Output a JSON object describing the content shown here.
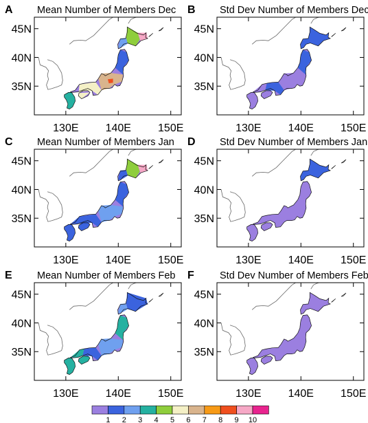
{
  "figure": {
    "colorbar": {
      "ticks": [
        "1",
        "2",
        "3",
        "4",
        "5",
        "6",
        "7",
        "8",
        "9",
        "10"
      ],
      "colors": [
        "#9b7fe0",
        "#3b63de",
        "#6fa0ef",
        "#25b1a1",
        "#8fce3c",
        "#f4f0c6",
        "#d9b48d",
        "#f79a16",
        "#f04f1e",
        "#f6a8c6",
        "#e8238e"
      ]
    }
  },
  "chart_data": [
    {
      "type": "heatmap",
      "panel": "A",
      "title": "Mean Number of Members Dec",
      "xticks": [
        "130E",
        "140E",
        "150E"
      ],
      "yticks": [
        "35N",
        "40N",
        "45N"
      ],
      "xlim": [
        124,
        152
      ],
      "ylim": [
        30,
        47
      ],
      "palette": "colorbar",
      "regions": [
        {
          "name": "hokkaido-west",
          "value": 3
        },
        {
          "name": "hokkaido-central",
          "value": 5
        },
        {
          "name": "hokkaido-east",
          "value": 10
        },
        {
          "name": "tohoku",
          "value": 2
        },
        {
          "name": "kanto-chubu",
          "value": 7
        },
        {
          "name": "kii",
          "value": 9
        },
        {
          "name": "chugoku-shikoku",
          "value": 6
        },
        {
          "name": "kyushu",
          "value": 4
        }
      ]
    },
    {
      "type": "heatmap",
      "panel": "B",
      "title": "Std Dev Number of Members Dec",
      "xticks": [
        "130E",
        "140E",
        "150E"
      ],
      "yticks": [
        "35N",
        "40N",
        "45N"
      ],
      "xlim": [
        124,
        152
      ],
      "ylim": [
        30,
        47
      ],
      "palette": "colorbar",
      "regions": [
        {
          "name": "hokkaido",
          "value": 2
        },
        {
          "name": "tohoku",
          "value": 2
        },
        {
          "name": "chubu",
          "value": 1
        },
        {
          "name": "kinki",
          "value": 2
        },
        {
          "name": "west",
          "value": 1
        }
      ]
    },
    {
      "type": "heatmap",
      "panel": "C",
      "title": "Mean Number of Members Jan",
      "xticks": [
        "130E",
        "140E",
        "150E"
      ],
      "yticks": [
        "35N",
        "40N",
        "45N"
      ],
      "xlim": [
        124,
        152
      ],
      "ylim": [
        30,
        47
      ],
      "palette": "colorbar",
      "regions": [
        {
          "name": "hokkaido-west",
          "value": 2
        },
        {
          "name": "hokkaido-central",
          "value": 5
        },
        {
          "name": "hokkaido-east",
          "value": 10
        },
        {
          "name": "tohoku",
          "value": 2
        },
        {
          "name": "chubu",
          "value": 3
        },
        {
          "name": "west",
          "value": 2
        }
      ]
    },
    {
      "type": "heatmap",
      "panel": "D",
      "title": "Std Dev Number of Members Jan",
      "xticks": [
        "130E",
        "140E",
        "150E"
      ],
      "yticks": [
        "35N",
        "40N",
        "45N"
      ],
      "xlim": [
        124,
        152
      ],
      "ylim": [
        30,
        47
      ],
      "palette": "colorbar",
      "regions": [
        {
          "name": "hokkaido",
          "value": 2
        },
        {
          "name": "tohoku",
          "value": 1
        },
        {
          "name": "chubu",
          "value": 1
        },
        {
          "name": "west",
          "value": 1
        }
      ]
    },
    {
      "type": "heatmap",
      "panel": "E",
      "title": "Mean Number of Members Feb",
      "xticks": [
        "130E",
        "140E",
        "150E"
      ],
      "yticks": [
        "35N",
        "40N",
        "45N"
      ],
      "xlim": [
        124,
        152
      ],
      "ylim": [
        30,
        47
      ],
      "palette": "colorbar",
      "regions": [
        {
          "name": "hokkaido-west",
          "value": 3
        },
        {
          "name": "hokkaido-central",
          "value": 2
        },
        {
          "name": "tohoku",
          "value": 4
        },
        {
          "name": "chubu",
          "value": 3
        },
        {
          "name": "kinki",
          "value": 2
        },
        {
          "name": "west",
          "value": 4
        }
      ]
    },
    {
      "type": "heatmap",
      "panel": "F",
      "title": "Std Dev Number of Members Feb",
      "xticks": [
        "130E",
        "140E",
        "150E"
      ],
      "yticks": [
        "35N",
        "40N",
        "45N"
      ],
      "xlim": [
        124,
        152
      ],
      "ylim": [
        30,
        47
      ],
      "palette": "colorbar",
      "regions": [
        {
          "name": "hokkaido",
          "value": 1
        },
        {
          "name": "tohoku",
          "value": 1
        },
        {
          "name": "chubu",
          "value": 1
        },
        {
          "name": "west",
          "value": 1
        }
      ]
    }
  ]
}
